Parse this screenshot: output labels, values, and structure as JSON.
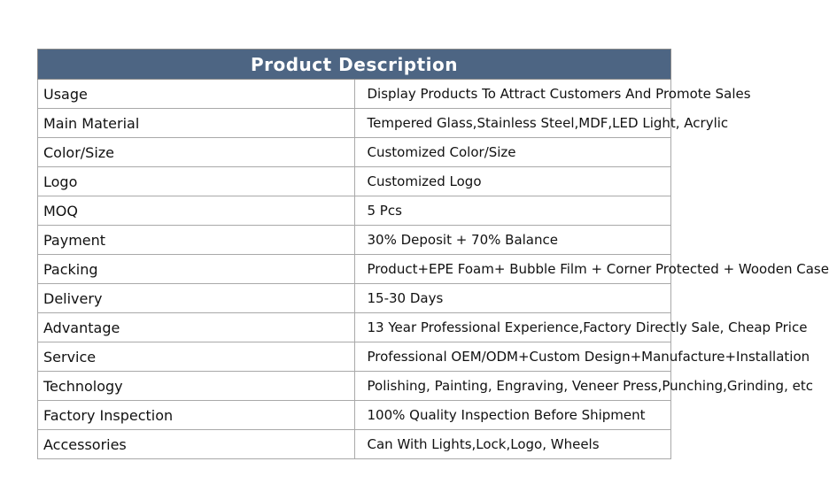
{
  "table": {
    "title": "Product Description",
    "rows": [
      {
        "label": "Usage",
        "value": "Display Products To Attract Customers And Promote Sales"
      },
      {
        "label": "Main Material",
        "value": "Tempered Glass,Stainless Steel,MDF,LED Light, Acrylic"
      },
      {
        "label": "Color/Size",
        "value": "Customized Color/Size"
      },
      {
        "label": "Logo",
        "value": "Customized Logo"
      },
      {
        "label": "MOQ",
        "value": "5 Pcs"
      },
      {
        "label": "Payment",
        "value": "30% Deposit + 70% Balance"
      },
      {
        "label": "Packing",
        "value": "Product+EPE Foam+ Bubble Film + Corner Protected + Wooden Case"
      },
      {
        "label": "Delivery",
        "value": "15-30 Days"
      },
      {
        "label": "Advantage",
        "value": "13 Year Professional Experience,Factory Directly Sale, Cheap Price"
      },
      {
        "label": "Service",
        "value": "Professional OEM/ODM+Custom Design+Manufacture+Installation"
      },
      {
        "label": "Technology",
        "value": "Polishing, Painting, Engraving, Veneer Press,Punching,Grinding, etc"
      },
      {
        "label": "Factory Inspection",
        "value": "100% Quality Inspection Before Shipment"
      },
      {
        "label": "Accessories",
        "value": "Can With Lights,Lock,Logo, Wheels"
      }
    ]
  }
}
